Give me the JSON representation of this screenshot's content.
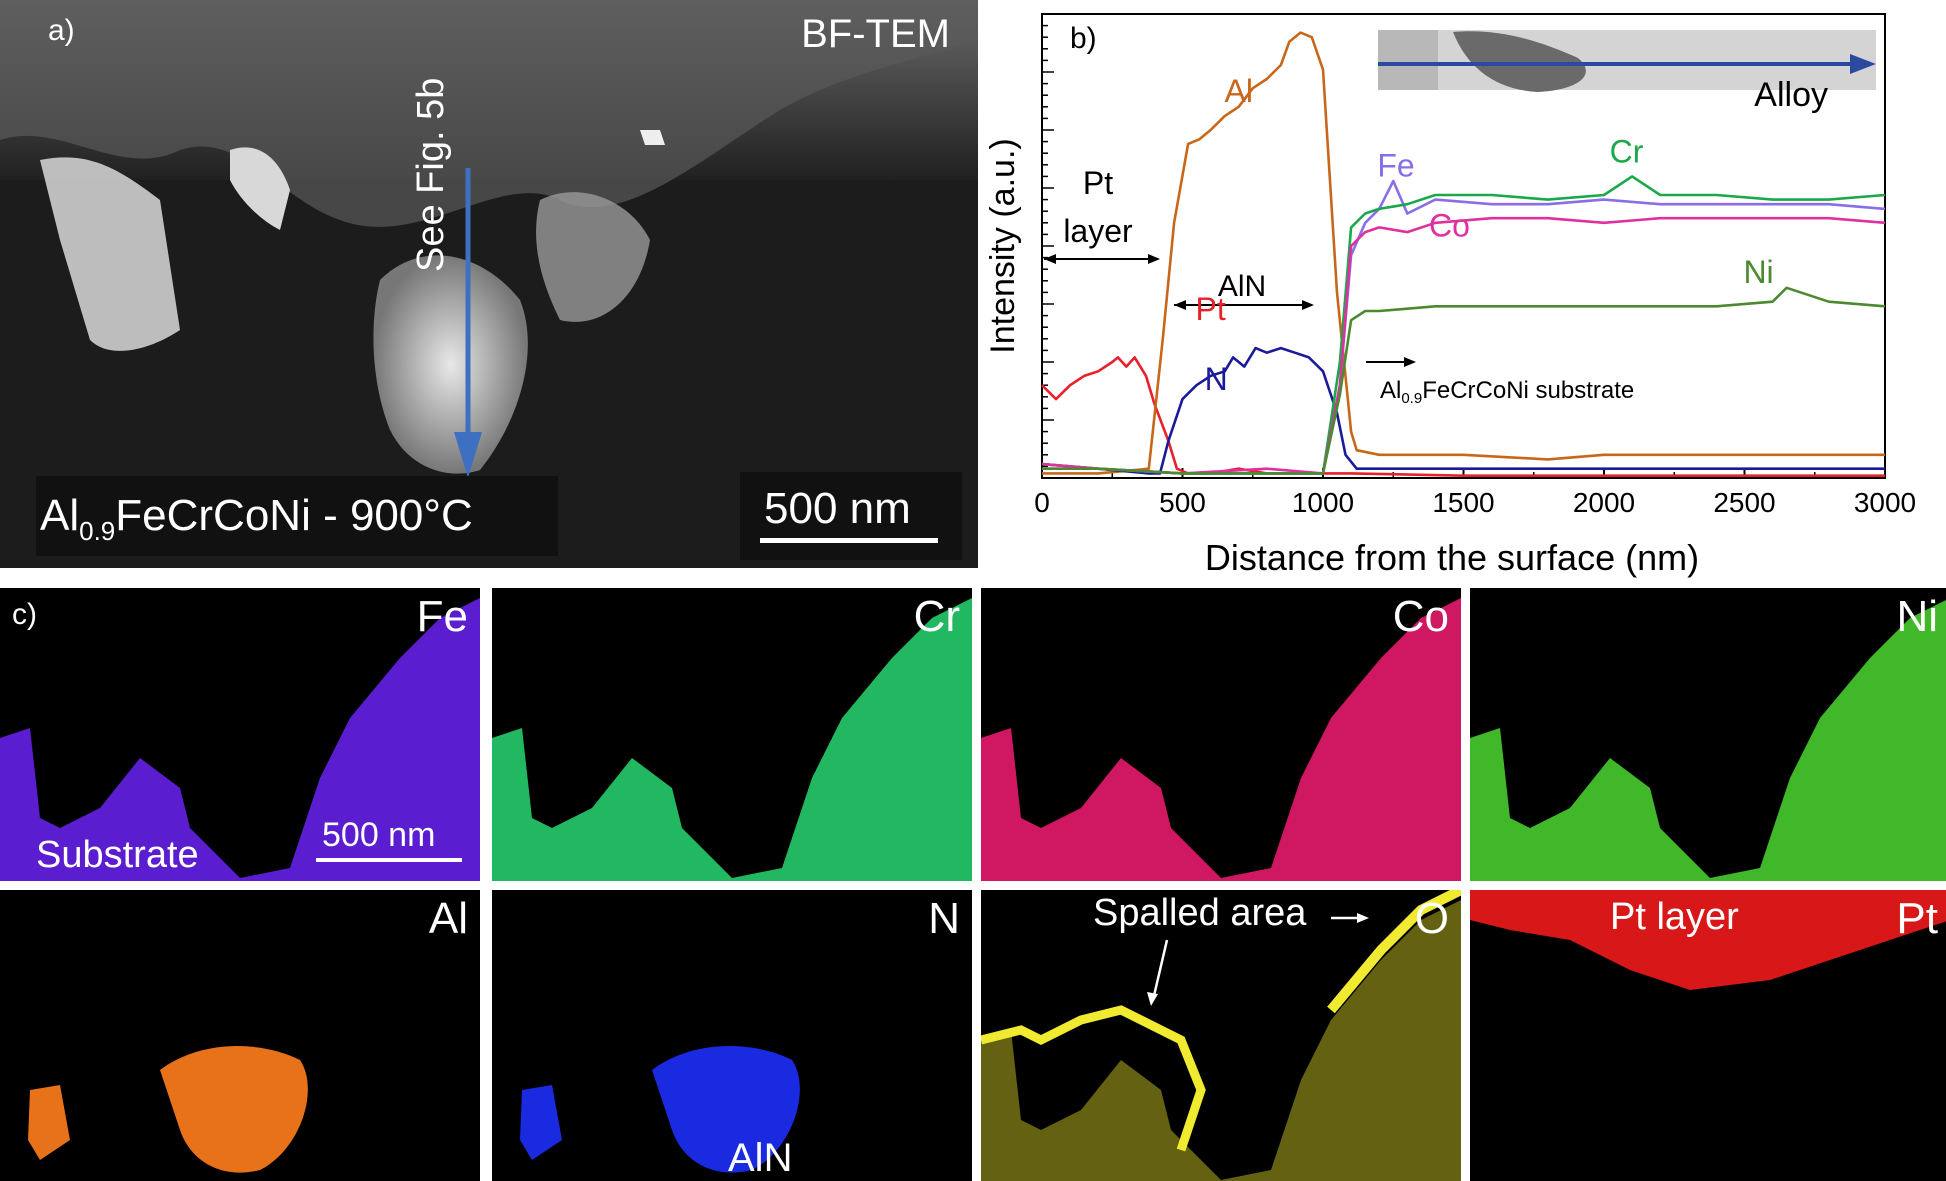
{
  "panel_a": {
    "label": "a)",
    "mode": "BF-TEM",
    "annotation": "See Fig. 5b",
    "sample_prefix": "Al",
    "sample_sub": "0.9",
    "sample_suffix": "FeCrCoNi - 900°C",
    "scalebar": "500 nm",
    "arrow_color": "#3f6fc0"
  },
  "panel_b": {
    "label": "b)",
    "inset_label": "Alloy",
    "labels": {
      "pt_layer_1": "Pt",
      "pt_layer_2": "layer",
      "aln": "AlN",
      "substrate_prefix": "Al",
      "substrate_sub": "0.9",
      "substrate_suffix": "FeCrCoNi substrate"
    }
  },
  "chart_data": {
    "type": "line",
    "xlabel": "Distance from the surface (nm)",
    "ylabel": "Intensity (a.u.)",
    "xlim": [
      0,
      3000
    ],
    "ylim": [
      0,
      100
    ],
    "xticks": [
      "0",
      "500",
      "1000",
      "1500",
      "2000",
      "2500",
      "3000"
    ],
    "series": [
      {
        "name": "Pt",
        "color": "#e8202a",
        "x": [
          0,
          50,
          100,
          150,
          200,
          250,
          270,
          300,
          330,
          370,
          400,
          450,
          480,
          520,
          600,
          700,
          800,
          900,
          1000,
          1100,
          1500,
          2000,
          2500,
          3000
        ],
        "y": [
          20,
          17,
          20,
          22,
          23,
          25,
          26,
          24,
          26,
          22,
          16,
          8,
          2,
          1,
          1,
          2,
          1,
          1,
          1,
          1,
          0.5,
          0.5,
          0.5,
          0.5
        ]
      },
      {
        "name": "Al",
        "color": "#c8671a",
        "x": [
          0,
          200,
          380,
          430,
          470,
          520,
          560,
          600,
          650,
          700,
          750,
          800,
          850,
          880,
          920,
          960,
          1000,
          1050,
          1100,
          1120,
          1200,
          1500,
          1800,
          2000,
          2500,
          3000
        ],
        "y": [
          1,
          1,
          2,
          30,
          55,
          72,
          73,
          75,
          78,
          80,
          84,
          86,
          89,
          94,
          96,
          95,
          88,
          40,
          10,
          6,
          5,
          5,
          4,
          5,
          5,
          5
        ]
      },
      {
        "name": "N",
        "color": "#1a1a9a",
        "x": [
          0,
          200,
          380,
          420,
          450,
          500,
          550,
          600,
          650,
          680,
          720,
          760,
          800,
          850,
          900,
          950,
          1000,
          1050,
          1080,
          1120,
          1300,
          1600,
          2000,
          2500,
          3000
        ],
        "y": [
          3,
          2,
          1,
          1,
          8,
          17,
          20,
          22,
          23,
          26,
          24,
          28,
          27,
          28,
          27,
          26,
          23,
          14,
          5,
          2,
          2,
          2,
          2,
          2,
          2
        ]
      },
      {
        "name": "Fe",
        "color": "#8a6ee8",
        "x": [
          0,
          200,
          500,
          800,
          1000,
          1060,
          1100,
          1150,
          1200,
          1250,
          1300,
          1400,
          1600,
          1800,
          2000,
          2200,
          2500,
          2800,
          3000
        ],
        "y": [
          2,
          2,
          1,
          1,
          1,
          20,
          48,
          55,
          58,
          64,
          57,
          60,
          59,
          59,
          60,
          59,
          59,
          59,
          58
        ]
      },
      {
        "name": "Cr",
        "color": "#1aa84a",
        "x": [
          0,
          200,
          500,
          800,
          1000,
          1060,
          1100,
          1150,
          1200,
          1300,
          1400,
          1600,
          1800,
          2000,
          2100,
          2200,
          2400,
          2600,
          2800,
          3000
        ],
        "y": [
          3,
          2,
          1,
          1,
          1,
          25,
          54,
          57,
          58,
          59,
          61,
          61,
          60,
          61,
          65,
          61,
          61,
          60,
          60,
          61
        ]
      },
      {
        "name": "Co",
        "color": "#e030a0",
        "x": [
          0,
          200,
          500,
          800,
          1000,
          1060,
          1100,
          1150,
          1200,
          1300,
          1400,
          1600,
          1800,
          2000,
          2200,
          2500,
          2800,
          3000
        ],
        "y": [
          3,
          2,
          1,
          2,
          1,
          20,
          50,
          53,
          54,
          53,
          55,
          56,
          56,
          55,
          56,
          56,
          56,
          55
        ]
      },
      {
        "name": "Ni",
        "color": "#4a8a30",
        "x": [
          0,
          200,
          500,
          800,
          1000,
          1060,
          1100,
          1150,
          1200,
          1400,
          1600,
          1800,
          2000,
          2200,
          2400,
          2600,
          2650,
          2800,
          3000
        ],
        "y": [
          2,
          2,
          1,
          1,
          1,
          18,
          34,
          36,
          36,
          37,
          37,
          37,
          37,
          37,
          37,
          38,
          41,
          38,
          37
        ]
      }
    ]
  },
  "panel_c": {
    "label": "c)",
    "substrate_label": "Substrate",
    "scalebar": "500 nm",
    "aln_label": "AlN",
    "spalled_label": "Spalled area",
    "pt_layer_label": "Pt layer",
    "tiles": [
      {
        "element": "Fe",
        "color": "#5a1ed0"
      },
      {
        "element": "Cr",
        "color": "#22b862"
      },
      {
        "element": "Co",
        "color": "#d01862"
      },
      {
        "element": "Ni",
        "color": "#40b82a"
      },
      {
        "element": "Al",
        "color": "#e8721a"
      },
      {
        "element": "N",
        "color": "#1a2ae0"
      },
      {
        "element": "O",
        "color": "#b8b020"
      },
      {
        "element": "Pt",
        "color": "#d81818"
      }
    ]
  }
}
